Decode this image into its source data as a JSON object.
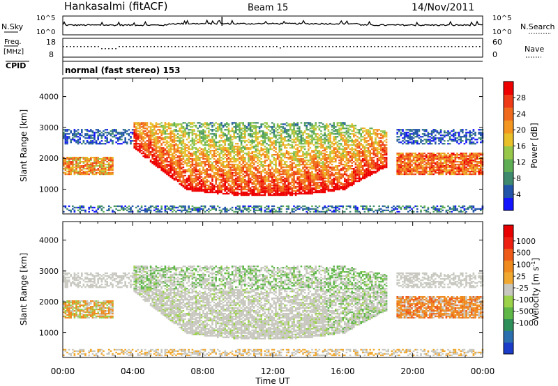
{
  "header": {
    "station": "Hankasalmi (fitACF)",
    "beam": "Beam 15",
    "date": "14/Nov/2011"
  },
  "noise_panel": {
    "left_label": "N.Sky",
    "right_label": "N.Search",
    "ticks": [
      "10^5",
      "10^0"
    ]
  },
  "freq_panel": {
    "left_label_1": "Freq.",
    "left_label_2": "[MHz]",
    "left_ticks": [
      "18",
      "8"
    ],
    "right_label": "Nave",
    "right_ticks": [
      "60",
      "0"
    ]
  },
  "cpid_panel": {
    "label": "CPID",
    "text": "normal (fast stereo) 153"
  },
  "chart_data": [
    {
      "type": "heatmap",
      "name": "power-panel",
      "ylabel": "Slant Range [km]",
      "ylim": [
        200,
        4600
      ],
      "yticks": [
        1000,
        2000,
        3000,
        4000
      ],
      "xlim": [
        0,
        24
      ],
      "xticks": [
        "00:00",
        "04:00",
        "08:00",
        "12:00",
        "16:00",
        "20:00",
        "00:00"
      ],
      "colorbar": {
        "label": "Power [dB]",
        "ticks": [
          "4",
          "8",
          "12",
          "16",
          "20",
          "24",
          "28"
        ],
        "colors": [
          "#1414ff",
          "#2255aa",
          "#3f8a6f",
          "#5fae55",
          "#98c84a",
          "#e8c02a",
          "#f39720",
          "#ef6a1c",
          "#ee3a17",
          "#ee0000"
        ]
      }
    },
    {
      "type": "heatmap",
      "name": "velocity-panel",
      "ylabel": "Slant Range [km]",
      "ylim": [
        200,
        4600
      ],
      "yticks": [
        1000,
        2000,
        3000,
        4000
      ],
      "xlim": [
        0,
        24
      ],
      "xticks": [
        "00:00",
        "04:00",
        "08:00",
        "12:00",
        "16:00",
        "20:00",
        "00:00"
      ],
      "xlabel": "Time UT",
      "colorbar": {
        "label": "Velocity [m s",
        "label_sup": "-1",
        "label_end": "]",
        "ticks": [
          "1000",
          "500",
          "100",
          "25",
          "-25",
          "-100",
          "-500",
          "-1000"
        ],
        "colors": [
          "#1a3cc8",
          "#2c6fae",
          "#2f8f5a",
          "#5fb748",
          "#9bd24a",
          "#c8c8c0",
          "#f0a830",
          "#ef8a1e",
          "#ee5a18",
          "#ee2012",
          "#e80000"
        ]
      }
    }
  ],
  "time_axis": {
    "label": "Time UT",
    "ticks": [
      "00:00",
      "04:00",
      "08:00",
      "12:00",
      "16:00",
      "20:00",
      "00:00"
    ]
  }
}
